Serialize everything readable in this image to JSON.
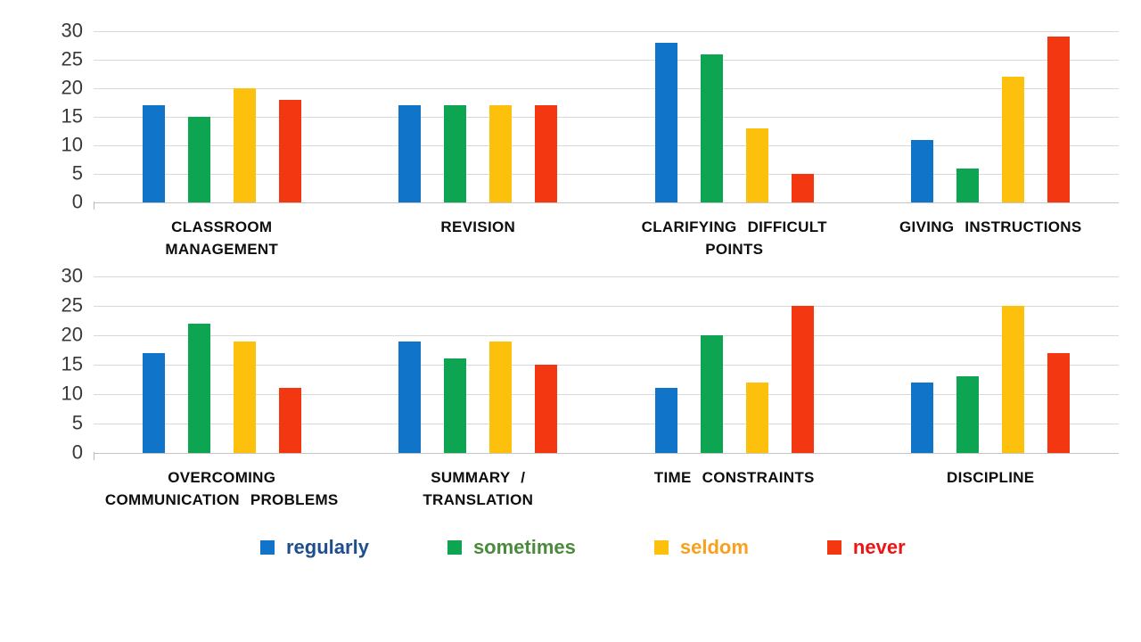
{
  "y_axis": {
    "min": 0,
    "max": 30,
    "step": 5,
    "tick_labels": [
      "30",
      "25",
      "20",
      "15",
      "10",
      "5",
      "0"
    ]
  },
  "legend": [
    {
      "label": "regularly",
      "swatch_color": "#1075C9",
      "text_color": "#1F4E8C"
    },
    {
      "label": "sometimes",
      "swatch_color": "#0EA552",
      "text_color": "#4A8A3C"
    },
    {
      "label": "seldom",
      "swatch_color": "#FDC10D",
      "text_color": "#F9A11C"
    },
    {
      "label": "never",
      "swatch_color": "#F33711",
      "text_color": "#EE1414"
    }
  ],
  "colors": {
    "bar_blue": "#1075C9",
    "bar_green": "#0EA552",
    "bar_yellow": "#FDC10D",
    "bar_red": "#F33711",
    "gridline": "#D8D8D8",
    "tick_label": "#383838",
    "category_label": "#0D0D0D",
    "background": "#FFFFFF"
  },
  "chart_data": [
    {
      "type": "bar",
      "position": "top-row",
      "title": "",
      "xlabel": "",
      "ylabel": "",
      "ylim": [
        0,
        30
      ],
      "yticks": [
        0,
        5,
        10,
        15,
        20,
        25,
        30
      ],
      "grid": true,
      "legend_position": "none",
      "categories": [
        "CLASSROOM\nMANAGEMENT",
        "REVISION",
        "CLARIFYING DIFFICULT\nPOINTS",
        "GIVING INSTRUCTIONS"
      ],
      "series": [
        {
          "name": "regularly",
          "color": "#1075C9",
          "values": [
            17,
            17,
            28,
            11
          ]
        },
        {
          "name": "sometimes",
          "color": "#0EA552",
          "values": [
            15,
            17,
            26,
            6
          ]
        },
        {
          "name": "seldom",
          "color": "#FDC10D",
          "values": [
            20,
            17,
            13,
            22
          ]
        },
        {
          "name": "never",
          "color": "#F33711",
          "values": [
            18,
            17,
            5,
            29
          ]
        }
      ]
    },
    {
      "type": "bar",
      "position": "bottom-row",
      "title": "",
      "xlabel": "",
      "ylabel": "",
      "ylim": [
        0,
        30
      ],
      "yticks": [
        0,
        5,
        10,
        15,
        20,
        25,
        30
      ],
      "grid": true,
      "legend_position": "bottom",
      "categories": [
        "OVERCOMING\nCOMMUNICATION PROBLEMS",
        "SUMMARY /\nTRANSLATION",
        "TIME CONSTRAINTS",
        "DISCIPLINE"
      ],
      "series": [
        {
          "name": "regularly",
          "color": "#1075C9",
          "values": [
            17,
            19,
            11,
            12
          ]
        },
        {
          "name": "sometimes",
          "color": "#0EA552",
          "values": [
            22,
            16,
            20,
            13
          ]
        },
        {
          "name": "seldom",
          "color": "#FDC10D",
          "values": [
            19,
            19,
            12,
            25
          ]
        },
        {
          "name": "never",
          "color": "#F33711",
          "values": [
            11,
            15,
            25,
            17
          ]
        }
      ]
    }
  ]
}
